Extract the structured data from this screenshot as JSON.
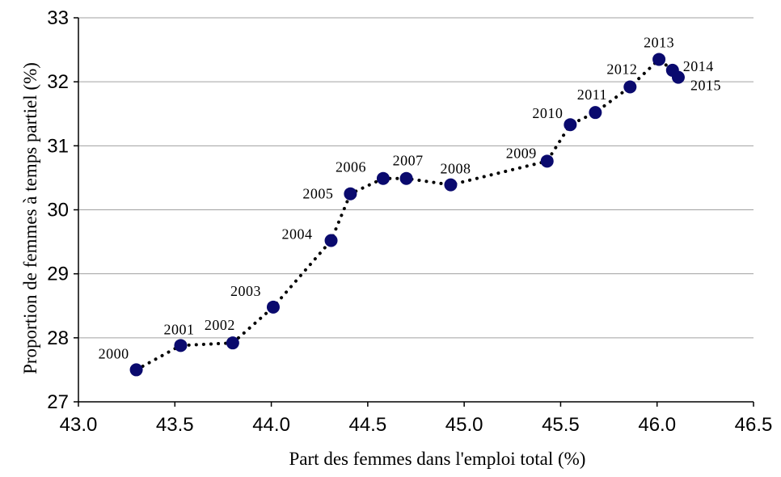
{
  "chart_data": {
    "type": "scatter",
    "xlabel": "Part des femmes dans l'emploi total  (%)",
    "ylabel": "Proportion de femmes à temps partiel (%)",
    "xlim": [
      43.0,
      46.5
    ],
    "ylim": [
      27,
      33
    ],
    "x_ticks": [
      "43.0",
      "43.5",
      "44.0",
      "44.5",
      "45.0",
      "45.5",
      "46.0",
      "46.5"
    ],
    "y_ticks": [
      "27",
      "28",
      "29",
      "30",
      "31",
      "32",
      "33"
    ],
    "grid": "horizontal",
    "line_style": "dotted",
    "marker_color": "#0a0a6e",
    "grid_color": "#a0a0a0",
    "points": [
      {
        "label": "2000",
        "x": 43.3,
        "y": 27.5
      },
      {
        "label": "2001",
        "x": 43.53,
        "y": 27.88
      },
      {
        "label": "2002",
        "x": 43.8,
        "y": 27.92
      },
      {
        "label": "2003",
        "x": 44.01,
        "y": 28.48
      },
      {
        "label": "2004",
        "x": 44.31,
        "y": 29.52
      },
      {
        "label": "2005",
        "x": 44.41,
        "y": 30.25
      },
      {
        "label": "2006",
        "x": 44.58,
        "y": 30.49
      },
      {
        "label": "2007",
        "x": 44.7,
        "y": 30.49
      },
      {
        "label": "2008",
        "x": 44.93,
        "y": 30.39
      },
      {
        "label": "2009",
        "x": 45.43,
        "y": 30.76
      },
      {
        "label": "2010",
        "x": 45.55,
        "y": 31.33
      },
      {
        "label": "2011",
        "x": 45.68,
        "y": 31.52
      },
      {
        "label": "2012",
        "x": 45.86,
        "y": 31.92
      },
      {
        "label": "2013",
        "x": 46.01,
        "y": 32.35
      },
      {
        "label": "2014",
        "x": 46.08,
        "y": 32.18
      },
      {
        "label": "2015",
        "x": 46.11,
        "y": 32.07
      }
    ]
  }
}
